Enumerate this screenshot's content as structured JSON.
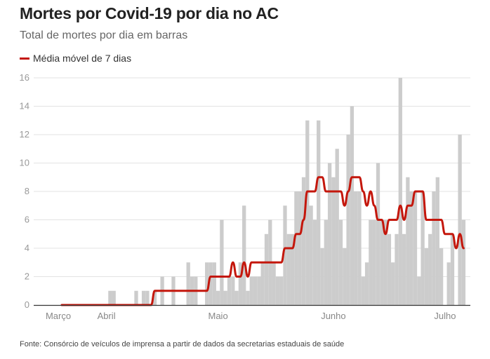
{
  "title": "Mortes por Covid-19 por dia no AC",
  "subtitle": "Total de mortes por dia em barras",
  "legend": "Média móvel de 7 dias",
  "footer": "Fonte: Consórcio de veículos de imprensa a partir de dados da secretarias estaduais de saúde",
  "colors": {
    "bars": "#cccccc",
    "line": "#c4170c"
  },
  "chart_data": {
    "type": "bar",
    "title": "Mortes por Covid-19 por dia no AC",
    "subtitle": "Total de mortes por dia em barras",
    "ylim": [
      0,
      16
    ],
    "yticks": [
      0,
      2,
      4,
      6,
      8,
      10,
      12,
      14,
      16
    ],
    "xtick_labels": [
      "Março",
      "Abril",
      "Maio",
      "Junho",
      "Julho"
    ],
    "xtick_dates": [
      "20/03",
      "01/04",
      "01/05",
      "01/06",
      "01/07"
    ],
    "grid": true,
    "legend_position": "top-left",
    "x": [
      "20/03",
      "21/03",
      "22/03",
      "23/03",
      "24/03",
      "25/03",
      "26/03",
      "27/03",
      "28/03",
      "29/03",
      "30/03",
      "31/03",
      "01/04",
      "02/04",
      "03/04",
      "04/04",
      "05/04",
      "06/04",
      "07/04",
      "08/04",
      "09/04",
      "10/04",
      "11/04",
      "12/04",
      "13/04",
      "14/04",
      "15/04",
      "16/04",
      "17/04",
      "18/04",
      "19/04",
      "20/04",
      "21/04",
      "22/04",
      "23/04",
      "24/04",
      "25/04",
      "26/04",
      "27/04",
      "28/04",
      "29/04",
      "30/04",
      "01/05",
      "02/05",
      "03/05",
      "04/05",
      "05/05",
      "06/05",
      "07/05",
      "08/05",
      "09/05",
      "10/05",
      "11/05",
      "12/05",
      "13/05",
      "14/05",
      "15/05",
      "16/05",
      "17/05",
      "18/05",
      "19/05",
      "20/05",
      "21/05",
      "22/05",
      "23/05",
      "24/05",
      "25/05",
      "26/05",
      "27/05",
      "28/05",
      "29/05",
      "30/05",
      "31/05",
      "01/06",
      "02/06",
      "03/06",
      "04/06",
      "05/06",
      "06/06",
      "07/06",
      "08/06",
      "09/06",
      "10/06",
      "11/06",
      "12/06",
      "13/06",
      "14/06",
      "15/06",
      "16/06",
      "17/06",
      "18/06",
      "19/06",
      "20/06",
      "21/06",
      "22/06",
      "23/06",
      "24/06",
      "25/06",
      "26/06",
      "27/06",
      "28/06",
      "29/06",
      "30/06",
      "01/07",
      "02/07",
      "03/07",
      "04/07",
      "05/07",
      "06/07"
    ],
    "series": [
      {
        "type": "bar",
        "values": [
          0,
          0,
          0,
          0,
          0,
          0,
          0,
          0,
          0,
          0,
          0,
          0,
          0,
          1,
          1,
          0,
          0,
          0,
          0,
          0,
          1,
          0,
          1,
          1,
          0,
          1,
          0,
          2,
          0,
          0,
          2,
          0,
          0,
          0,
          3,
          2,
          2,
          0,
          0,
          3,
          3,
          3,
          1,
          6,
          1,
          2,
          2,
          1,
          3,
          7,
          1,
          2,
          2,
          2,
          3,
          5,
          6,
          3,
          2,
          2,
          7,
          5,
          5,
          8,
          8,
          9,
          13,
          7,
          6,
          13,
          4,
          6,
          10,
          9,
          11,
          6,
          4,
          12,
          14,
          8,
          8,
          2,
          3,
          6,
          6,
          10,
          6,
          6,
          5,
          3,
          5,
          16,
          5,
          9,
          8,
          8,
          2,
          8,
          4,
          5,
          8,
          9,
          4,
          0,
          3,
          5,
          0,
          12,
          6
        ]
      },
      {
        "type": "line",
        "name": "Média móvel de 7 dias",
        "values": [
          0,
          0,
          0,
          0,
          0,
          0,
          0,
          0,
          0,
          0,
          0,
          0,
          0,
          0,
          0,
          0,
          0,
          0,
          0,
          0,
          0,
          0,
          0,
          0,
          0,
          1,
          1,
          1,
          1,
          1,
          1,
          1,
          1,
          1,
          1,
          1,
          1,
          1,
          1,
          1,
          2,
          2,
          2,
          2,
          2,
          2,
          3,
          2,
          2,
          3,
          2,
          3,
          3,
          3,
          3,
          3,
          3,
          3,
          3,
          3,
          4,
          4,
          4,
          5,
          5,
          6,
          8,
          8,
          8,
          9,
          9,
          8,
          8,
          8,
          8,
          8,
          7,
          8,
          9,
          9,
          9,
          8,
          7,
          8,
          7,
          6,
          6,
          5,
          6,
          6,
          6,
          7,
          6,
          7,
          7,
          8,
          8,
          8,
          6,
          6,
          6,
          6,
          6,
          5,
          5,
          5,
          4,
          5,
          4
        ]
      }
    ]
  }
}
